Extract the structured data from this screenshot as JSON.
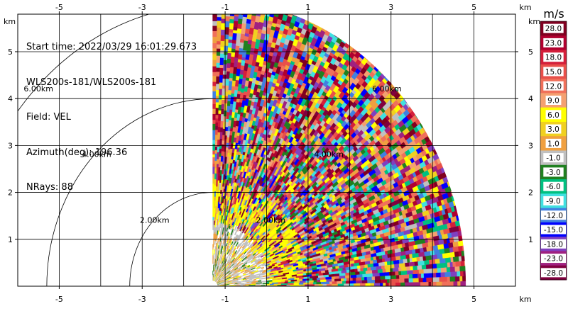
{
  "info": {
    "start_time": "Start time: 2022/03/29 16:01:29.673",
    "instrument": "WLS200s-181/WLS200s-181",
    "field": "Field: VEL",
    "azimuth": "Azimuth(deg): 196.36",
    "nrays": "NRays: 88"
  },
  "chart_data": {
    "type": "heatmap",
    "projection": "polar-quadrant",
    "field": "VEL",
    "units": "m/s",
    "x_unit_label": "km",
    "y_unit_label": "km",
    "xlim": [
      -6.0,
      6.0
    ],
    "ylim": [
      0.0,
      5.8
    ],
    "x_ticks": [
      -5,
      -3,
      -1,
      1,
      3,
      5
    ],
    "y_ticks": [
      1,
      2,
      3,
      4,
      5
    ],
    "grid": true,
    "range_rings": [
      {
        "radius_km": 2.0,
        "label": "2.00km"
      },
      {
        "radius_km": 4.0,
        "label": "4.00km"
      },
      {
        "radius_km": 6.0,
        "label": "6.00km"
      }
    ],
    "radar_origin_km": [
      -1.3,
      0.0
    ],
    "max_range_km": 6.1,
    "data_azimuth_deg": [
      0,
      90
    ],
    "colorbar": {
      "labels": [
        "28.0",
        "23.0",
        "18.0",
        "15.0",
        "12.0",
        "9.0",
        "6.0",
        "3.0",
        "1.0",
        "-1.0",
        "-3.0",
        "-6.0",
        "-9.0",
        "-12.0",
        "-15.0",
        "-18.0",
        "-23.0",
        "-28.0"
      ],
      "colors": [
        "#800020",
        "#b0002f",
        "#d41f3a",
        "#e8504a",
        "#f0705a",
        "#f4a070",
        "#ffff00",
        "#f0d020",
        "#f0a040",
        "#c0c0c0",
        "#208020",
        "#00c080",
        "#40e0e0",
        "#4080e0",
        "#0000ff",
        "#8040c0",
        "#a02080",
        "#80003f"
      ]
    }
  }
}
